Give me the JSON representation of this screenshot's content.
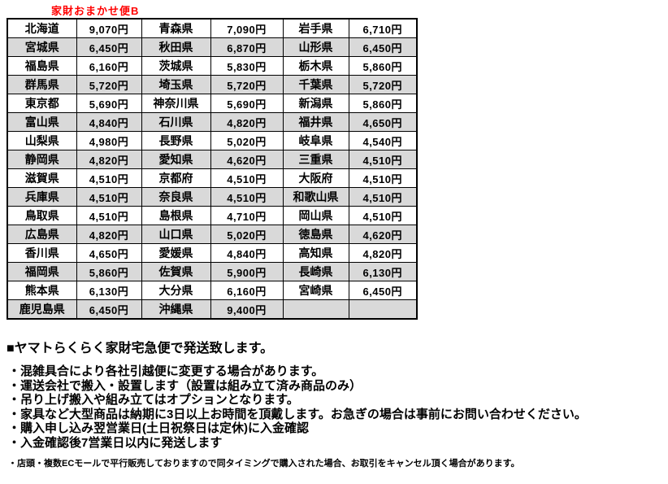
{
  "title": "家財おまかせ便B",
  "colors": {
    "title_red": "#ff0000",
    "row_alt_gray": "#d9d9d9",
    "border_black": "#000000"
  },
  "table": {
    "columns": [
      "prefecture",
      "price",
      "prefecture",
      "price",
      "prefecture",
      "price"
    ],
    "rows": [
      [
        "北海道",
        "9,070円",
        "青森県",
        "7,090円",
        "岩手県",
        "6,710円"
      ],
      [
        "宮城県",
        "6,450円",
        "秋田県",
        "6,870円",
        "山形県",
        "6,450円"
      ],
      [
        "福島県",
        "6,160円",
        "茨城県",
        "5,830円",
        "栃木県",
        "5,860円"
      ],
      [
        "群馬県",
        "5,720円",
        "埼玉県",
        "5,720円",
        "千葉県",
        "5,720円"
      ],
      [
        "東京都",
        "5,690円",
        "神奈川県",
        "5,690円",
        "新潟県",
        "5,860円"
      ],
      [
        "富山県",
        "4,840円",
        "石川県",
        "4,820円",
        "福井県",
        "4,650円"
      ],
      [
        "山梨県",
        "4,980円",
        "長野県",
        "5,020円",
        "岐阜県",
        "4,540円"
      ],
      [
        "静岡県",
        "4,820円",
        "愛知県",
        "4,620円",
        "三重県",
        "4,510円"
      ],
      [
        "滋賀県",
        "4,510円",
        "京都府",
        "4,510円",
        "大阪府",
        "4,510円"
      ],
      [
        "兵庫県",
        "4,510円",
        "奈良県",
        "4,510円",
        "和歌山県",
        "4,510円"
      ],
      [
        "鳥取県",
        "4,510円",
        "島根県",
        "4,710円",
        "岡山県",
        "4,510円"
      ],
      [
        "広島県",
        "4,820円",
        "山口県",
        "5,020円",
        "徳島県",
        "4,620円"
      ],
      [
        "香川県",
        "4,650円",
        "愛媛県",
        "4,840円",
        "高知県",
        "4,820円"
      ],
      [
        "福岡県",
        "5,860円",
        "佐賀県",
        "5,900円",
        "長崎県",
        "6,130円"
      ],
      [
        "熊本県",
        "6,130円",
        "大分県",
        "6,160円",
        "宮崎県",
        "6,450円"
      ],
      [
        "鹿児島県",
        "6,450円",
        "沖縄県",
        "9,400円",
        "",
        ""
      ]
    ]
  },
  "notes": {
    "heading": "■ヤマトらくらく家財宅急便で発送致します。",
    "bullets": [
      "・混雑具合により各社引越便に変更する場合があります。",
      "・運送会社で搬入・設置します（設置は組み立て済み商品のみ）",
      "・吊り上げ搬入や組み立てはオプションとなります。",
      "・家具など大型商品は納期に3日以上お時間を頂戴します。お急ぎの場合は事前にお問い合わせください。",
      "・購入申し込み翌営業日(土日祝祭日は定休)に入金確認",
      "・入金確認後7営業日以内に発送します"
    ],
    "fine_print": "・店頭・複数ECモールで平行販売しておりますので同タイミングで購入された場合、お取引をキャンセル頂く場合があります。"
  }
}
